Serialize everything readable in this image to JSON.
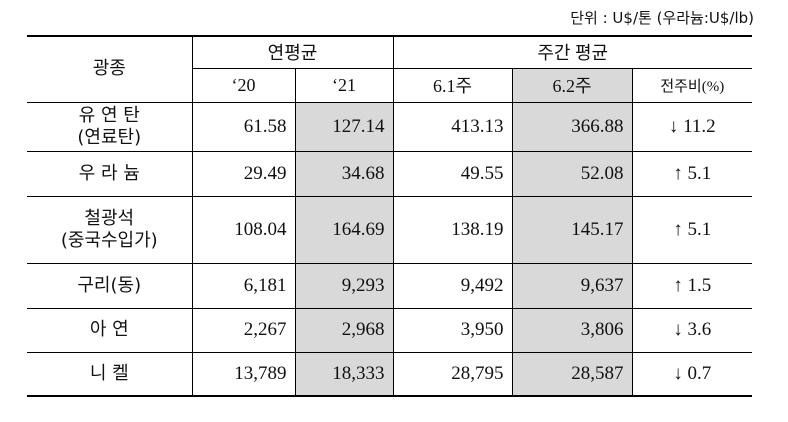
{
  "unit_note": "단위 : U$/톤 (우라늄:U$/lb)",
  "table": {
    "header": {
      "mineral": "광종",
      "annual_avg": "연평균",
      "weekly_avg": "주간 평균",
      "columns": [
        "‘20",
        "‘21",
        "6.1주",
        "6.2주",
        "전주비(%)"
      ]
    },
    "rows": [
      {
        "name": [
          "유 연 탄",
          "(연료탄)"
        ],
        "cells": [
          "61.58",
          "127.14",
          "413.13",
          "366.88",
          "↓ 11.2"
        ]
      },
      {
        "name": [
          "우 라 늄"
        ],
        "cells": [
          "29.49",
          "34.68",
          "49.55",
          "52.08",
          "↑ 5.1"
        ]
      },
      {
        "name": [
          "철광석",
          "(중국수입가)"
        ],
        "cells": [
          "108.04",
          "164.69",
          "138.19",
          "145.17",
          "↑ 5.1"
        ]
      },
      {
        "name": [
          "구리(동)"
        ],
        "cells": [
          "6,181",
          "9,293",
          "9,492",
          "9,637",
          "↑ 1.5"
        ]
      },
      {
        "name": [
          "아 연"
        ],
        "cells": [
          "2,267",
          "2,968",
          "3,950",
          "3,806",
          "↓ 3.6"
        ]
      },
      {
        "name": [
          "니 켈"
        ],
        "cells": [
          "13,789",
          "18,333",
          "28,795",
          "28,587",
          "↓ 0.7"
        ]
      }
    ]
  }
}
